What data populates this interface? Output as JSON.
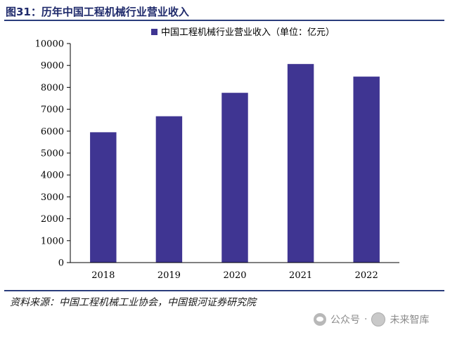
{
  "figure": {
    "title": "图31：历年中国工程机械行业营业收入",
    "source": "资料来源：中国工程机械工业协会，中国银河证券研究院"
  },
  "watermark": {
    "account_label": "公众号",
    "separator": "·",
    "name": "未来智库"
  },
  "colors": {
    "bar": "#3f3592",
    "rule": "#2a3d7c",
    "title": "#1f2a6b"
  },
  "chart_data": {
    "type": "bar",
    "categories": [
      "2018",
      "2019",
      "2020",
      "2021",
      "2022"
    ],
    "series": [
      {
        "name": "中国工程机械行业营业收入（单位：亿元）",
        "values": [
          5950,
          6680,
          7750,
          9065,
          8490
        ]
      }
    ],
    "ylim": [
      0,
      10000
    ],
    "yticks": [
      0,
      1000,
      2000,
      3000,
      4000,
      5000,
      6000,
      7000,
      8000,
      9000,
      10000
    ],
    "title": "",
    "xlabel": "",
    "ylabel": "",
    "grid": false,
    "legend_position": "top"
  }
}
